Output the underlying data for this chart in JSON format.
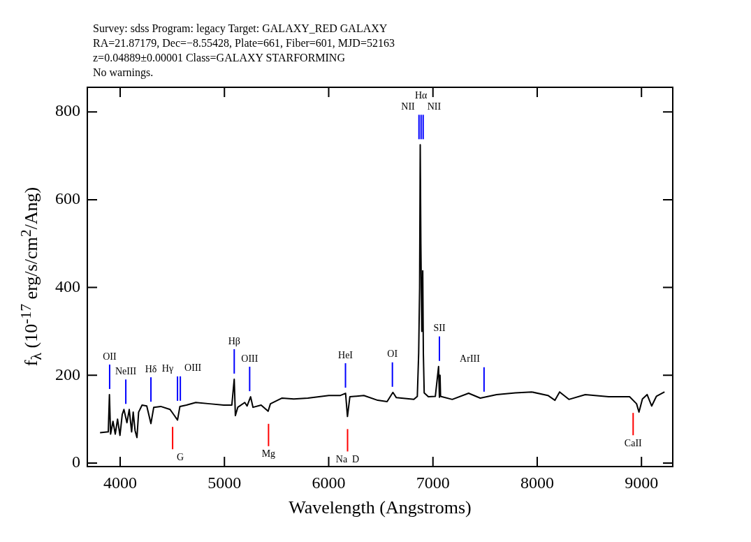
{
  "chart_data": {
    "type": "line",
    "title": "Survey: sdss Program: legacy Target: GALAXY_RED GALAXY",
    "subtitle": "RA=21.87179, Dec=−8.55428, Plate=661, Fiber=601, MJD=52163\nz=0.04889±0.00001 Class=GALAXY STARFORMING\nNo warnings.",
    "xlabel": "Wavelength (Angstroms)",
    "ylabel": "f$_{λ}$ (10$^{-17}$ erg/s/cm$^{2}$/Ang)",
    "x": [
      3807,
      3886,
      3897,
      3908,
      3931,
      3953,
      3975,
      3998,
      4020,
      4036,
      4065,
      4087,
      4110,
      4125,
      4143,
      4161,
      4177,
      4210,
      4255,
      4295,
      4322,
      4389,
      4479,
      4512,
      4550,
      4573,
      4635,
      4725,
      4859,
      4993,
      5071,
      5094,
      5105,
      5128,
      5195,
      5217,
      5251,
      5274,
      5352,
      5419,
      5441,
      5553,
      5665,
      5800,
      6001,
      6113,
      6162,
      6180,
      6203,
      6337,
      6470,
      6560,
      6616,
      6649,
      6817,
      6850,
      6863,
      6872,
      6878,
      6884,
      6893,
      6902,
      6908,
      6916,
      6956,
      7023,
      7054,
      7062,
      7068,
      7073,
      7185,
      7342,
      7454,
      7610,
      7790,
      7946,
      8103,
      8170,
      8215,
      8304,
      8461,
      8685,
      8886,
      8953,
      8976,
      9009,
      9054,
      9098,
      9143,
      9221
    ],
    "series": [
      {
        "color": "#000000",
        "values": [
          69,
          71,
          156,
          66,
          95,
          66,
          100,
          63,
          111,
          122,
          92,
          122,
          71,
          116,
          74,
          58,
          116,
          132,
          130,
          90,
          127,
          129,
          122,
          111,
          98,
          129,
          132,
          138,
          135,
          132,
          132,
          191,
          108,
          127,
          138,
          130,
          151,
          127,
          132,
          118,
          135,
          148,
          146,
          148,
          154,
          154,
          159,
          106,
          151,
          154,
          143,
          140,
          161,
          149,
          145,
          152,
          250,
          400,
          725,
          500,
          300,
          438,
          250,
          160,
          151,
          152,
          220,
          150,
          200,
          152,
          145,
          159,
          148,
          156,
          160,
          162,
          154,
          143,
          162,
          145,
          156,
          151,
          151,
          135,
          116,
          146,
          156,
          130,
          152,
          162
        ]
      }
    ],
    "xlim": [
      3685,
      9300
    ],
    "ylim": [
      -8,
      856
    ],
    "xticks": [
      4000,
      5000,
      6000,
      7000,
      8000,
      9000
    ],
    "yticks": [
      0,
      200,
      400,
      600,
      800
    ],
    "grid": false,
    "legend": false,
    "marker": "none",
    "line_style": "solid",
    "ref_lines": [
      {
        "axis": "x",
        "value": 3899,
        "label": "OII",
        "color": "#0000ff"
      },
      {
        "axis": "x",
        "value": 4054,
        "label": "NeIII",
        "color": "#0000ff"
      },
      {
        "axis": "x",
        "value": 4295,
        "label": "Hδ",
        "color": "#0000ff"
      },
      {
        "axis": "x",
        "value": 4550,
        "label": "Hγ",
        "color": "#0000ff"
      },
      {
        "axis": "x",
        "value": 4577,
        "label": "OIII",
        "color": "#0000ff"
      },
      {
        "axis": "x",
        "value": 5094,
        "label": "Hβ",
        "color": "#0000ff"
      },
      {
        "axis": "x",
        "value": 5242,
        "label": "OIII",
        "color": "#0000ff"
      },
      {
        "axis": "x",
        "value": 6161,
        "label": "HeI",
        "color": "#0000ff"
      },
      {
        "axis": "x",
        "value": 6611,
        "label": "OI",
        "color": "#0000ff"
      },
      {
        "axis": "x",
        "value": 6866,
        "label": "NII",
        "color": "#0000ff"
      },
      {
        "axis": "x",
        "value": 6886,
        "label": "Hα",
        "color": "#0000ff"
      },
      {
        "axis": "x",
        "value": 6906,
        "label": "NII",
        "color": "#0000ff"
      },
      {
        "axis": "x",
        "value": 7062,
        "label": "SII",
        "color": "#0000ff"
      },
      {
        "axis": "x",
        "value": 7490,
        "label": "ArIII",
        "color": "#0000ff"
      },
      {
        "axis": "x",
        "value": 4503,
        "label": "G",
        "color": "#ff0000"
      },
      {
        "axis": "x",
        "value": 5423,
        "label": "Mg",
        "color": "#ff0000"
      },
      {
        "axis": "x",
        "value": 6181,
        "label": "Na  D",
        "color": "#ff0000"
      },
      {
        "axis": "x",
        "value": 8920,
        "label": "CaII",
        "color": "#ff0000"
      }
    ]
  }
}
